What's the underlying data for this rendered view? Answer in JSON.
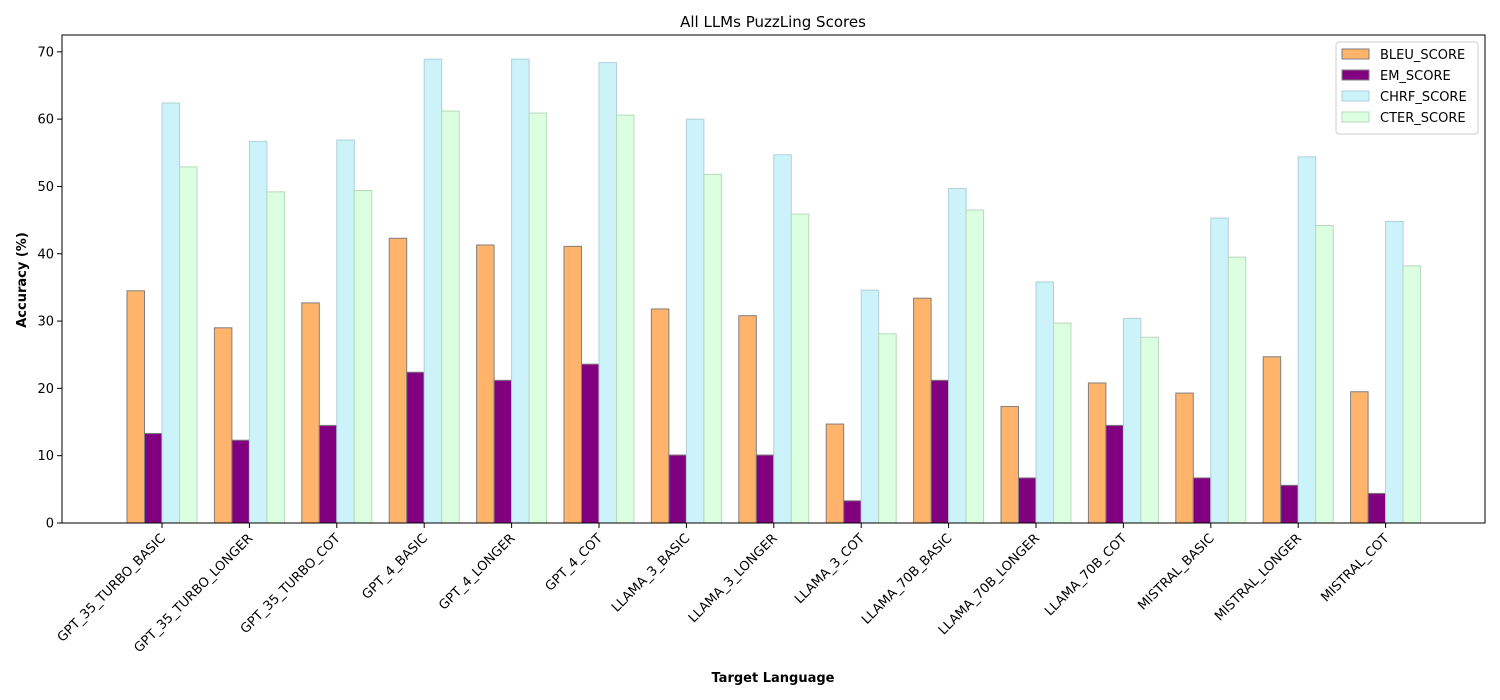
{
  "chart_data": {
    "type": "bar",
    "title": "All LLMs PuzzLing Scores",
    "xlabel": "Target Language",
    "ylabel": "Accuracy (%)",
    "ylim": [
      0,
      72.5
    ],
    "yticks": [
      0,
      10,
      20,
      30,
      40,
      50,
      60,
      70
    ],
    "grid": false,
    "legend_position": "top-right",
    "categories": [
      "GPT_35_TURBO_BASIC",
      "GPT_35_TURBO_LONGER",
      "GPT_35_TURBO_COT",
      "GPT_4_BASIC",
      "GPT_4_LONGER",
      "GPT_4_COT",
      "LLAMA_3_BASIC",
      "LLAMA_3_LONGER",
      "LLAMA_3_COT",
      "LLAMA_70B_BASIC",
      "LLAMA_70B_LONGER",
      "LLAMA_70B_COT",
      "MISTRAL_BASIC",
      "MISTRAL_LONGER",
      "MISTRAL_COT"
    ],
    "series": [
      {
        "name": "BLEU_SCORE",
        "color": "#ffb36b",
        "edge": "#7f7f7f",
        "values": [
          34.5,
          29.0,
          32.7,
          42.3,
          41.3,
          41.1,
          31.8,
          30.8,
          14.7,
          33.4,
          17.3,
          20.8,
          19.3,
          24.7,
          19.5
        ]
      },
      {
        "name": "EM_SCORE",
        "color": "#800080",
        "edge": "#7f7f7f",
        "values": [
          13.3,
          12.3,
          14.5,
          22.4,
          21.2,
          23.6,
          10.1,
          10.1,
          3.3,
          21.2,
          6.7,
          14.5,
          6.7,
          5.6,
          4.4
        ]
      },
      {
        "name": "CHRF_SCORE",
        "color": "#ccf2fa",
        "edge": "#b0d0d8",
        "values": [
          62.4,
          56.7,
          56.9,
          68.9,
          68.9,
          68.4,
          60.0,
          54.7,
          34.6,
          49.7,
          35.8,
          30.4,
          45.3,
          54.4,
          44.8
        ]
      },
      {
        "name": "CTER_SCORE",
        "color": "#dbffe0",
        "edge": "#b8d8be",
        "values": [
          52.9,
          49.2,
          49.4,
          61.2,
          60.9,
          60.6,
          51.8,
          45.9,
          28.1,
          46.5,
          29.7,
          27.6,
          39.5,
          44.2,
          38.2
        ]
      }
    ]
  }
}
